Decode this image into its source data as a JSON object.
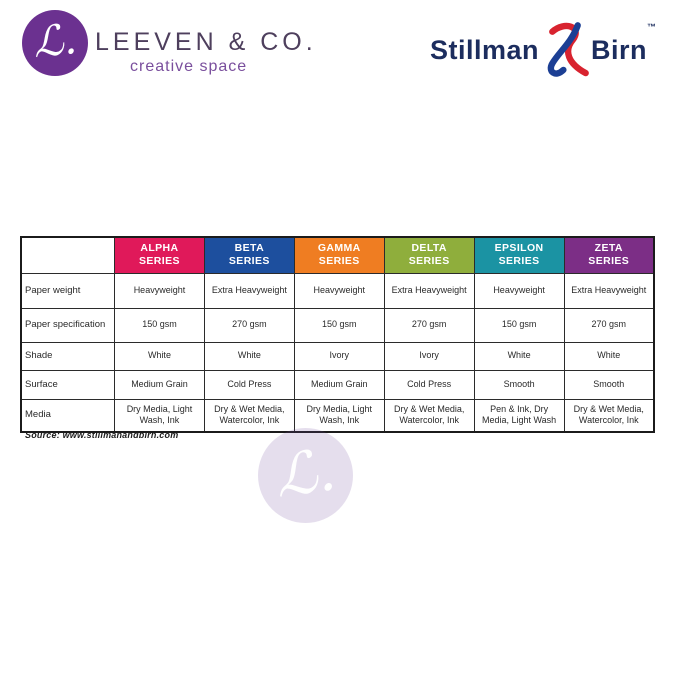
{
  "leeven_logo": {
    "monogram": "ℒ.",
    "wordmark": "LEEVEN & CO.",
    "tagline": "creative space",
    "circle_color": "#6b3190",
    "wordmark_color": "#4e3f5d",
    "tagline_color": "#7a4f9d"
  },
  "stillman_logo": {
    "word1": "Stillman",
    "word2": "Birn",
    "trademark": "™",
    "text_color": "#1c2d5e",
    "ampersand_red": "#d8232f",
    "ampersand_blue": "#1c3f94"
  },
  "source_note": "Source: www.stillmanandbirn.com",
  "watermark": {
    "monogram": "ℒ.",
    "circle_color": "rgba(111,74,155,0.18)"
  },
  "chart_data": {
    "type": "table",
    "columns": [
      {
        "label": "ALPHA SERIES",
        "color": "#e0195a"
      },
      {
        "label": "BETA SERIES",
        "color": "#1d4f9e"
      },
      {
        "label": "GAMMA SERIES",
        "color": "#ef7d22"
      },
      {
        "label": "DELTA SERIES",
        "color": "#8fae3c"
      },
      {
        "label": "EPSILON SERIES",
        "color": "#1b93a3"
      },
      {
        "label": "ZETA SERIES",
        "color": "#7c2e86"
      }
    ],
    "rows": [
      {
        "label": "Paper weight",
        "values": [
          "Heavyweight",
          "Extra Heavyweight",
          "Heavyweight",
          "Extra Heavyweight",
          "Heavyweight",
          "Extra Heavyweight"
        ]
      },
      {
        "label": "Paper specification",
        "values": [
          "150 gsm",
          "270 gsm",
          "150 gsm",
          "270 gsm",
          "150 gsm",
          "270 gsm"
        ]
      },
      {
        "label": "Shade",
        "values": [
          "White",
          "White",
          "Ivory",
          "Ivory",
          "White",
          "White"
        ]
      },
      {
        "label": "Surface",
        "values": [
          "Medium Grain",
          "Cold Press",
          "Medium Grain",
          "Cold Press",
          "Smooth",
          "Smooth"
        ]
      },
      {
        "label": "Media",
        "values": [
          "Dry Media, Light Wash, Ink",
          "Dry & Wet Media, Watercolor, Ink",
          "Dry Media, Light Wash, Ink",
          "Dry & Wet Media, Watercolor, Ink",
          "Pen & Ink, Dry Media, Light Wash",
          "Dry & Wet Media, Watercolor, Ink"
        ]
      }
    ]
  }
}
